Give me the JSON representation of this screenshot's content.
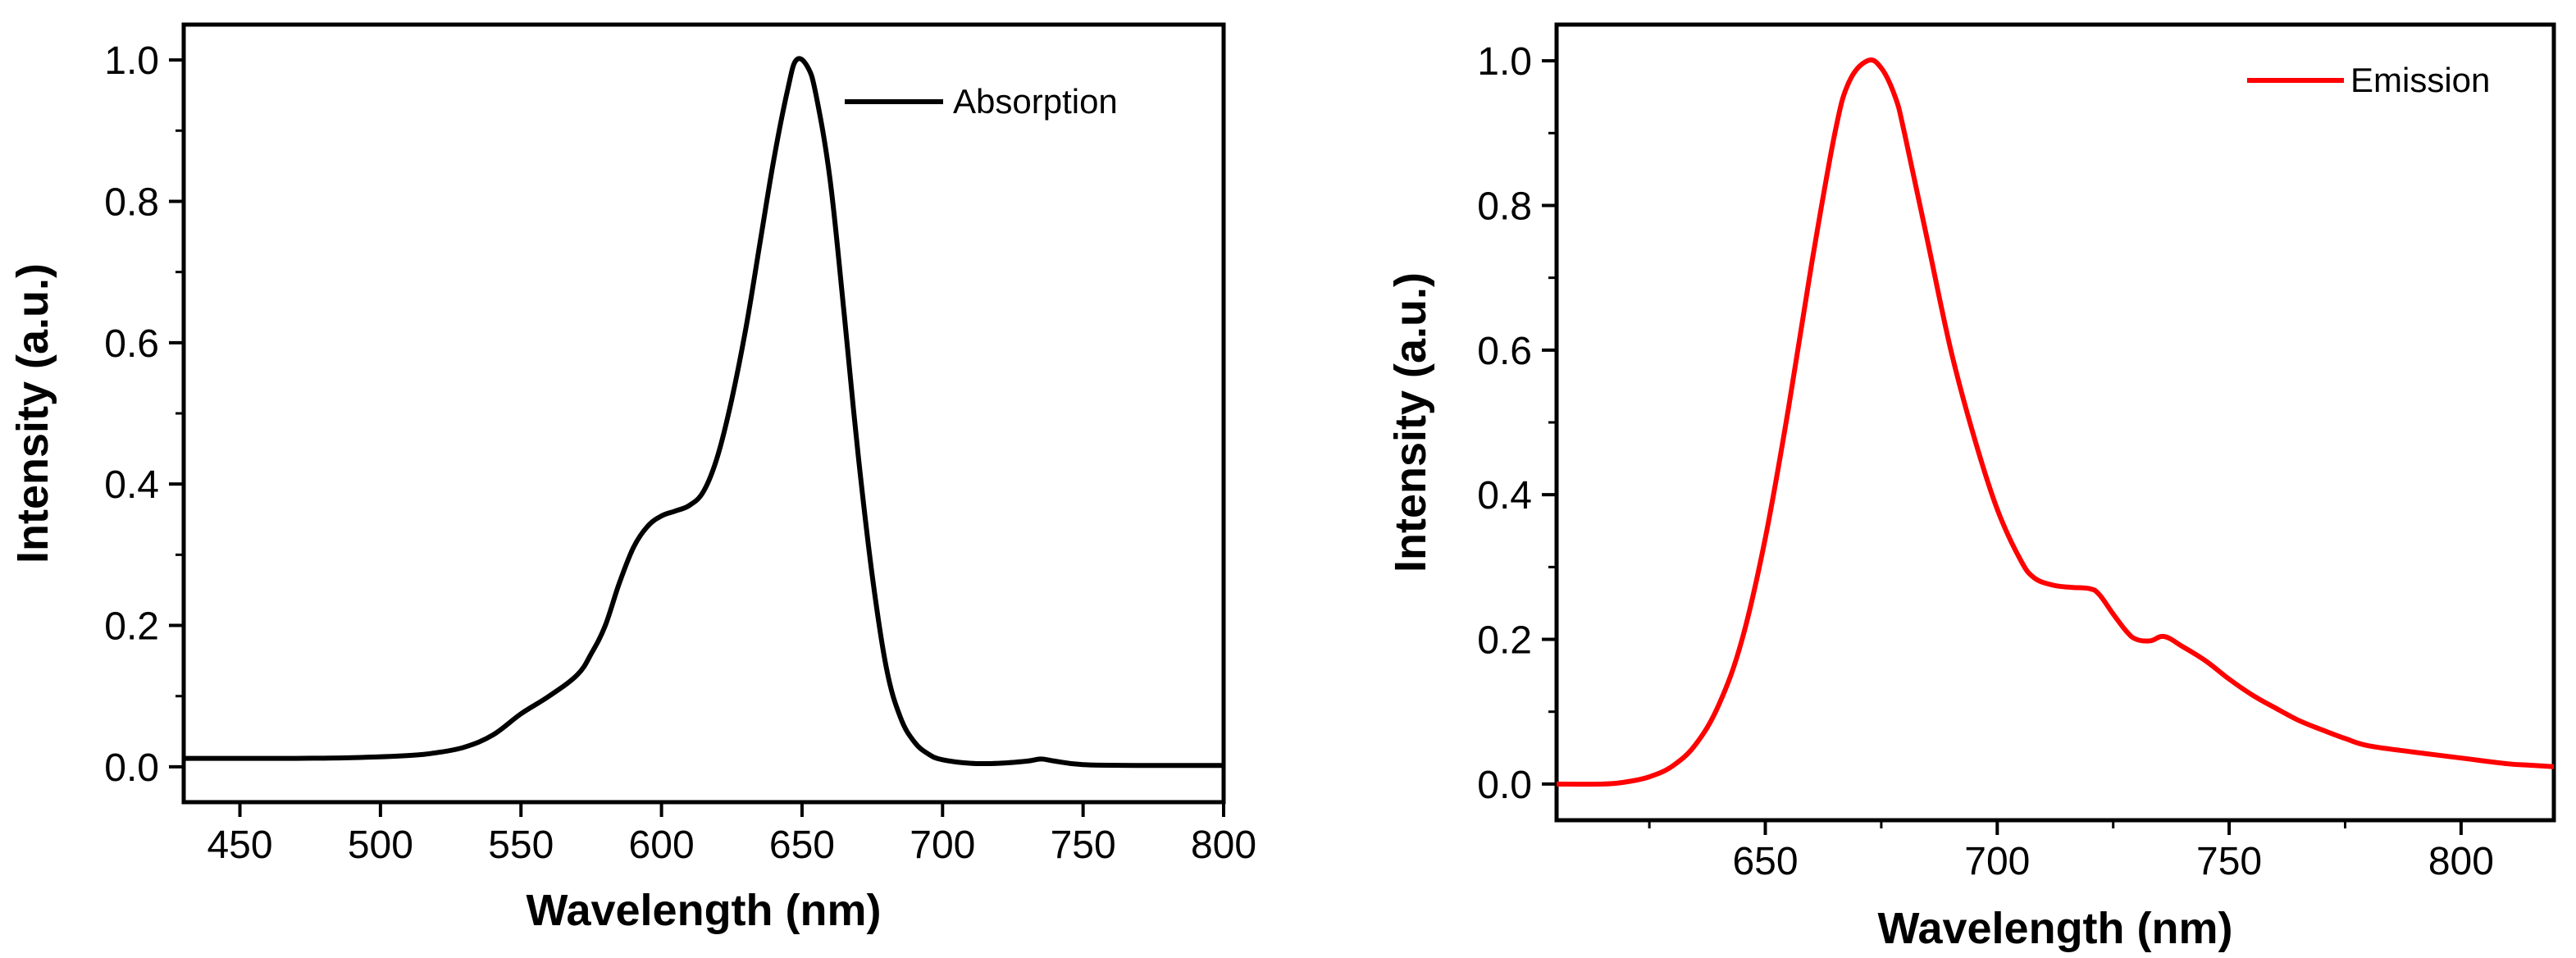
{
  "chart_data": [
    {
      "type": "line",
      "xlabel": "Wavelength (nm)",
      "ylabel": "Intensity (a.u.)",
      "xlim": [
        430,
        800
      ],
      "ylim": [
        -0.05,
        1.05
      ],
      "xticks": [
        450,
        500,
        550,
        600,
        650,
        700,
        750,
        800
      ],
      "xtick_labels": [
        "450",
        "500",
        "550",
        "600",
        "650",
        "700",
        "750",
        "800"
      ],
      "yticks": [
        0.0,
        0.2,
        0.4,
        0.6,
        0.8,
        1.0
      ],
      "ytick_labels": [
        "0.0",
        "0.2",
        "0.4",
        "0.6",
        "0.8",
        "1.0"
      ],
      "legend_position": "top-right",
      "grid": false,
      "series": [
        {
          "name": "Absorption",
          "color": "#000000",
          "x": [
            430,
            450,
            470,
            490,
            510,
            520,
            530,
            540,
            550,
            560,
            570,
            575,
            580,
            585,
            590,
            595,
            600,
            605,
            610,
            615,
            620,
            625,
            630,
            635,
            640,
            645,
            648,
            652,
            655,
            660,
            665,
            670,
            675,
            680,
            685,
            690,
            695,
            700,
            710,
            720,
            730,
            735,
            740,
            750,
            770,
            800
          ],
          "y": [
            0.012,
            0.012,
            0.012,
            0.013,
            0.016,
            0.02,
            0.028,
            0.045,
            0.075,
            0.1,
            0.13,
            0.16,
            0.2,
            0.26,
            0.31,
            0.34,
            0.355,
            0.362,
            0.37,
            0.39,
            0.44,
            0.52,
            0.62,
            0.74,
            0.86,
            0.96,
            1.0,
            0.99,
            0.95,
            0.83,
            0.64,
            0.44,
            0.27,
            0.14,
            0.07,
            0.035,
            0.018,
            0.01,
            0.005,
            0.005,
            0.008,
            0.011,
            0.008,
            0.003,
            0.002,
            0.002
          ]
        }
      ]
    },
    {
      "type": "line",
      "xlabel": "Wavelength (nm)",
      "ylabel": "Intensity (a.u.)",
      "xlim": [
        605,
        820
      ],
      "ylim": [
        -0.05,
        1.05
      ],
      "xticks": [
        650,
        700,
        750,
        800
      ],
      "xtick_labels": [
        "650",
        "700",
        "750",
        "800"
      ],
      "yticks": [
        0.0,
        0.2,
        0.4,
        0.6,
        0.8,
        1.0
      ],
      "ytick_labels": [
        "0.0",
        "0.2",
        "0.4",
        "0.6",
        "0.8",
        "1.0"
      ],
      "legend_position": "top-right",
      "grid": false,
      "series": [
        {
          "name": "Emission",
          "color": "#ff0000",
          "x": [
            605,
            615,
            620,
            625,
            630,
            635,
            640,
            645,
            650,
            655,
            660,
            665,
            668,
            672,
            675,
            678,
            680,
            685,
            690,
            695,
            700,
            705,
            708,
            712,
            716,
            720,
            722,
            725,
            728,
            730,
            733,
            736,
            740,
            745,
            750,
            755,
            760,
            765,
            770,
            775,
            780,
            790,
            800,
            810,
            815,
            820
          ],
          "y": [
            0.0,
            0.0,
            0.003,
            0.01,
            0.025,
            0.055,
            0.11,
            0.2,
            0.34,
            0.52,
            0.72,
            0.9,
            0.97,
            1.0,
            0.99,
            0.95,
            0.9,
            0.75,
            0.6,
            0.48,
            0.38,
            0.31,
            0.285,
            0.275,
            0.272,
            0.27,
            0.262,
            0.235,
            0.21,
            0.2,
            0.198,
            0.204,
            0.19,
            0.17,
            0.145,
            0.123,
            0.105,
            0.088,
            0.075,
            0.063,
            0.053,
            0.044,
            0.036,
            0.028,
            0.026,
            0.024
          ]
        }
      ]
    }
  ]
}
